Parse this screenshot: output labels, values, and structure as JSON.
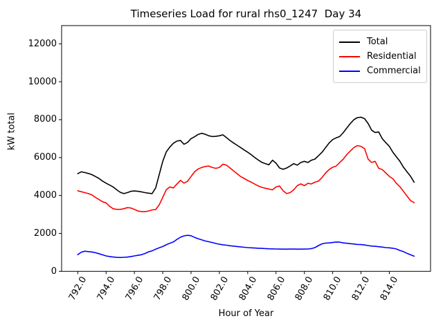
{
  "chart_data": {
    "type": "line",
    "title": "Timeseries Load for rural rhs0_1247  Day 34",
    "xlabel": "Hour of Year",
    "ylabel": "kW total",
    "xlim": [
      790.86,
      816.91
    ],
    "ylim": [
      0,
      12960
    ],
    "grid": false,
    "legend_position": "upper right",
    "x_ticks": [
      792,
      794,
      796,
      798,
      800,
      802,
      804,
      806,
      808,
      810,
      812,
      814
    ],
    "x_tick_labels": [
      "792.0",
      "794.0",
      "796.0",
      "798.0",
      "800.0",
      "802.0",
      "804.0",
      "806.0",
      "808.0",
      "810.0",
      "812.0",
      "814.0"
    ],
    "y_ticks": [
      0,
      2000,
      4000,
      6000,
      8000,
      10000,
      12000
    ],
    "y_tick_labels": [
      "0",
      "2000",
      "4000",
      "6000",
      "8000",
      "10000",
      "12000"
    ],
    "x_start": 792.0,
    "x_step": 0.25,
    "x": [
      792.0,
      792.25,
      792.5,
      792.75,
      793.0,
      793.25,
      793.5,
      793.75,
      794.0,
      794.25,
      794.5,
      794.75,
      795.0,
      795.25,
      795.5,
      795.75,
      796.0,
      796.25,
      796.5,
      796.75,
      797.0,
      797.25,
      797.5,
      797.75,
      798.0,
      798.25,
      798.5,
      798.75,
      799.0,
      799.25,
      799.5,
      799.75,
      800.0,
      800.25,
      800.5,
      800.75,
      801.0,
      801.25,
      801.5,
      801.75,
      802.0,
      802.25,
      802.5,
      802.75,
      803.0,
      803.25,
      803.5,
      803.75,
      804.0,
      804.25,
      804.5,
      804.75,
      805.0,
      805.25,
      805.5,
      805.75,
      806.0,
      806.25,
      806.5,
      806.75,
      807.0,
      807.25,
      807.5,
      807.75,
      808.0,
      808.25,
      808.5,
      808.75,
      809.0,
      809.25,
      809.5,
      809.75,
      810.0,
      810.25,
      810.5,
      810.75,
      811.0,
      811.25,
      811.5,
      811.75,
      812.0,
      812.25,
      812.5,
      812.75,
      813.0,
      813.25,
      813.5,
      813.75,
      814.0,
      814.25,
      814.5,
      814.75,
      815.0,
      815.25,
      815.5,
      815.75
    ],
    "series": [
      {
        "name": "Total",
        "color": "#000000",
        "values": [
          5150,
          5250,
          5210,
          5160,
          5100,
          5000,
          4900,
          4760,
          4650,
          4550,
          4450,
          4300,
          4170,
          4100,
          4150,
          4220,
          4240,
          4220,
          4190,
          4150,
          4120,
          4100,
          4400,
          5100,
          5800,
          6300,
          6550,
          6750,
          6870,
          6900,
          6700,
          6800,
          7000,
          7100,
          7220,
          7280,
          7230,
          7150,
          7110,
          7120,
          7150,
          7200,
          7050,
          6900,
          6770,
          6650,
          6530,
          6400,
          6280,
          6150,
          6000,
          5870,
          5750,
          5680,
          5620,
          5860,
          5700,
          5450,
          5380,
          5450,
          5560,
          5680,
          5600,
          5740,
          5800,
          5740,
          5860,
          5920,
          6100,
          6280,
          6530,
          6770,
          6950,
          7040,
          7110,
          7320,
          7560,
          7800,
          8000,
          8110,
          8130,
          8050,
          7800,
          7440,
          7320,
          7350,
          7000,
          6790,
          6590,
          6280,
          6040,
          5800,
          5490,
          5250,
          5010,
          4700
        ]
      },
      {
        "name": "Residential",
        "color": "#ff0000",
        "values": [
          4250,
          4200,
          4150,
          4100,
          4030,
          3900,
          3790,
          3670,
          3610,
          3430,
          3300,
          3270,
          3270,
          3300,
          3360,
          3340,
          3270,
          3180,
          3150,
          3150,
          3180,
          3240,
          3260,
          3500,
          3900,
          4300,
          4450,
          4400,
          4600,
          4800,
          4650,
          4750,
          5000,
          5250,
          5400,
          5480,
          5530,
          5550,
          5480,
          5430,
          5480,
          5650,
          5600,
          5450,
          5300,
          5150,
          5000,
          4900,
          4790,
          4700,
          4600,
          4500,
          4430,
          4380,
          4340,
          4300,
          4450,
          4500,
          4250,
          4100,
          4150,
          4300,
          4520,
          4610,
          4520,
          4640,
          4610,
          4700,
          4760,
          4950,
          5190,
          5370,
          5490,
          5550,
          5740,
          5920,
          6160,
          6350,
          6530,
          6630,
          6590,
          6470,
          5920,
          5740,
          5800,
          5430,
          5370,
          5190,
          5010,
          4880,
          4640,
          4460,
          4220,
          3970,
          3730,
          3620
        ]
      },
      {
        "name": "Commercial",
        "color": "#0000ff",
        "values": [
          880,
          1010,
          1060,
          1040,
          1020,
          980,
          930,
          870,
          815,
          780,
          755,
          735,
          730,
          740,
          750,
          780,
          815,
          845,
          875,
          940,
          1030,
          1080,
          1170,
          1240,
          1310,
          1400,
          1480,
          1550,
          1680,
          1800,
          1870,
          1900,
          1880,
          1790,
          1720,
          1660,
          1600,
          1560,
          1520,
          1470,
          1430,
          1400,
          1380,
          1350,
          1330,
          1310,
          1290,
          1270,
          1250,
          1240,
          1230,
          1220,
          1210,
          1200,
          1190,
          1185,
          1180,
          1175,
          1170,
          1170,
          1175,
          1175,
          1170,
          1170,
          1175,
          1180,
          1200,
          1250,
          1360,
          1450,
          1490,
          1500,
          1520,
          1545,
          1540,
          1500,
          1480,
          1460,
          1440,
          1420,
          1410,
          1390,
          1360,
          1330,
          1320,
          1300,
          1280,
          1250,
          1240,
          1220,
          1180,
          1100,
          1040,
          950,
          870,
          800
        ]
      }
    ]
  }
}
